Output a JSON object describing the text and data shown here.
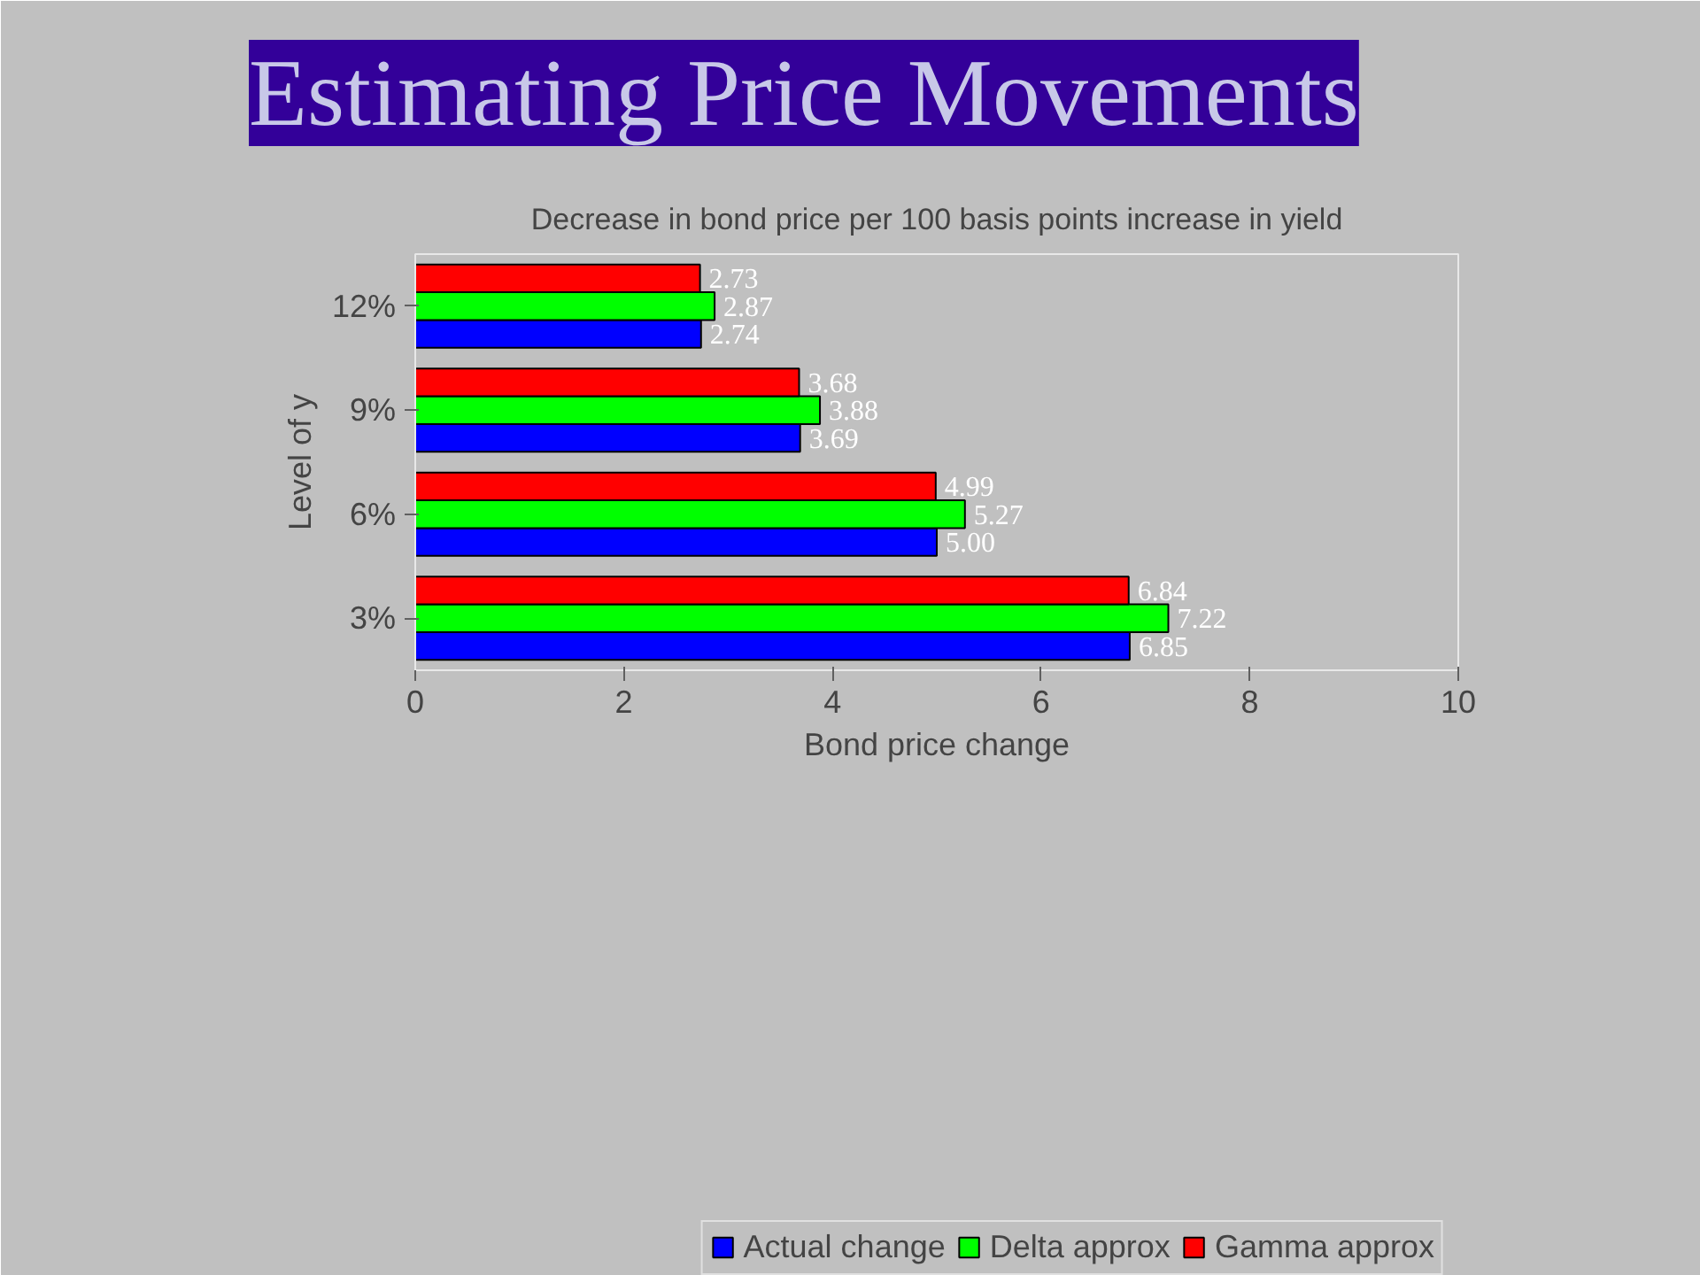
{
  "chart_data": {
    "type": "bar",
    "orientation": "horizontal",
    "title": "Estimating Price Movements",
    "subtitle": "Decrease in bond price per 100 basis points increase in yield",
    "xlabel": "Bond price change",
    "ylabel": "Level of y",
    "categories": [
      "12%",
      "9%",
      "6%",
      "3%"
    ],
    "series": [
      {
        "name": "Actual change",
        "color": "#0000ff",
        "values": [
          2.74,
          3.69,
          5.0,
          6.85
        ],
        "value_labels": [
          "2.74",
          "3.69",
          "5.00",
          "6.85"
        ]
      },
      {
        "name": "Delta approx",
        "color": "#00ff00",
        "values": [
          2.87,
          3.88,
          5.27,
          7.22
        ],
        "value_labels": [
          "2.87",
          "3.88",
          "5.27",
          "7.22"
        ]
      },
      {
        "name": "Gamma approx",
        "color": "#ff0000",
        "values": [
          2.73,
          3.68,
          4.99,
          6.84
        ],
        "value_labels": [
          "2.73",
          "3.68",
          "4.99",
          "6.84"
        ]
      }
    ],
    "xlim": [
      0,
      10
    ],
    "xticks": [
      0,
      2,
      4,
      6,
      8,
      10
    ],
    "grid": false,
    "legend": "bottom"
  }
}
